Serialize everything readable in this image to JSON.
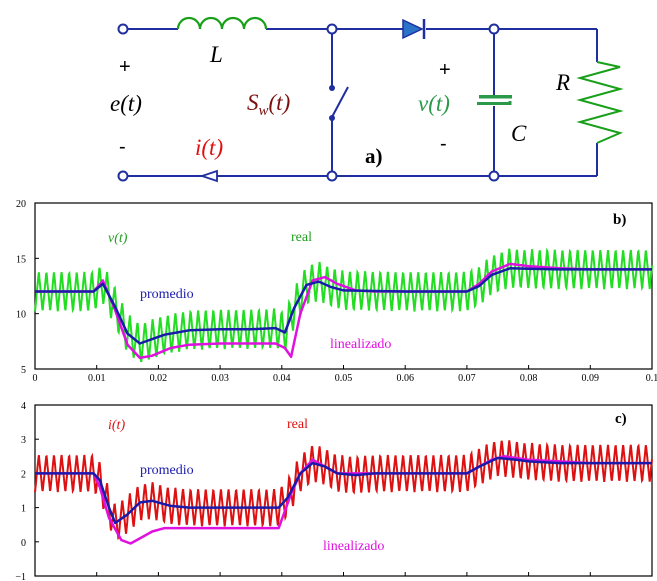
{
  "circuit": {
    "plus_left": "+",
    "minus_left": "-",
    "e_label": "e(t)",
    "L_label": "L",
    "switch_label": "S",
    "switch_sub": "w",
    "switch_arg": "(t)",
    "i_label": "i(t)",
    "panel_a": "a)",
    "plus_right": "+",
    "minus_right": "-",
    "v_label": "v(t)",
    "C_label": "C",
    "R_label": "R"
  },
  "colors": {
    "circuit_wire": "#1f2f9f",
    "inductor": "#18a018",
    "switch_label": "#7b1010",
    "current_label": "#e01010",
    "voltage_label": "#2a9a4a",
    "capacitor": "#2a9a4a",
    "resistor": "#18a018",
    "real_v": "#22dd22",
    "real_i": "#dd1111",
    "promedio": "#1a1aaa",
    "linealizado": "#e010e0"
  },
  "chart_data": [
    {
      "type": "line",
      "panel": "b)",
      "var_label": "v(t)",
      "xlim": [
        0,
        0.1
      ],
      "ylim": [
        5,
        20
      ],
      "xticks": [
        "0",
        "0.01",
        "0.02",
        "0.03",
        "0.04",
        "0.05",
        "0.06",
        "0.07",
        "0.08",
        "0.09",
        "0.1"
      ],
      "yticks": [
        "5",
        "10",
        "15",
        "20"
      ],
      "ripple": 3.6,
      "annotations": {
        "real": "real",
        "promedio": "promedio",
        "linealizado": "linealizado"
      },
      "series": [
        {
          "name": "promedio",
          "x": [
            0,
            0.0095,
            0.011,
            0.013,
            0.015,
            0.017,
            0.019,
            0.021,
            0.023,
            0.025,
            0.03,
            0.035,
            0.039,
            0.0405,
            0.042,
            0.044,
            0.046,
            0.048,
            0.05,
            0.055,
            0.06,
            0.065,
            0.07,
            0.072,
            0.074,
            0.077,
            0.08,
            0.085,
            0.09,
            0.095,
            0.1
          ],
          "y": [
            12,
            12,
            12.7,
            10.6,
            8.2,
            7.3,
            7.7,
            8.1,
            8.3,
            8.5,
            8.6,
            8.6,
            8.7,
            8.3,
            10.5,
            12.6,
            12.9,
            12.4,
            12.1,
            12.05,
            12,
            12,
            12,
            12.5,
            13.5,
            14.1,
            14.05,
            14,
            14,
            14,
            14
          ]
        },
        {
          "name": "linealizado",
          "x": [
            0,
            0.0095,
            0.011,
            0.013,
            0.015,
            0.017,
            0.019,
            0.022,
            0.025,
            0.03,
            0.035,
            0.039,
            0.0405,
            0.0415,
            0.043,
            0.045,
            0.047,
            0.049,
            0.052,
            0.055,
            0.06,
            0.065,
            0.07,
            0.072,
            0.074,
            0.077,
            0.08,
            0.085,
            0.09,
            0.1
          ],
          "y": [
            12,
            12,
            13,
            10.3,
            7.2,
            6,
            6.2,
            6.9,
            7.2,
            7.3,
            7.3,
            7.3,
            6.9,
            6.1,
            10,
            13,
            13.3,
            12.7,
            12.1,
            12,
            12,
            12,
            12,
            12.7,
            13.8,
            14.5,
            14.3,
            14.1,
            14,
            14
          ]
        }
      ]
    },
    {
      "type": "line",
      "panel": "c)",
      "var_label": "i(t)",
      "xlim": [
        0,
        0.1
      ],
      "ylim": [
        -1,
        4
      ],
      "xticks": [
        "0",
        "0.01",
        "0.02",
        "0.03",
        "0.04",
        "0.05",
        "0.06",
        "0.07",
        "0.08",
        "0.09",
        "0.1"
      ],
      "yticks": [
        "-1",
        "0",
        "1",
        "2",
        "3",
        "4"
      ],
      "ripple": 1.1,
      "annotations": {
        "real": "real",
        "promedio": "promedio",
        "linealizado": "linealizado"
      },
      "series": [
        {
          "name": "promedio",
          "x": [
            0,
            0.0095,
            0.0105,
            0.012,
            0.013,
            0.015,
            0.017,
            0.019,
            0.022,
            0.025,
            0.03,
            0.035,
            0.0395,
            0.041,
            0.043,
            0.045,
            0.047,
            0.049,
            0.052,
            0.055,
            0.06,
            0.065,
            0.07,
            0.072,
            0.075,
            0.078,
            0.08,
            0.085,
            0.09,
            0.1
          ],
          "y": [
            2,
            2,
            1.8,
            1,
            0.55,
            0.8,
            1.15,
            1.2,
            1.05,
            1,
            1,
            1,
            1,
            1.3,
            2,
            2.3,
            2.2,
            2,
            1.95,
            2,
            2,
            2,
            2,
            2.2,
            2.45,
            2.4,
            2.35,
            2.3,
            2.3,
            2.3
          ]
        },
        {
          "name": "linealizado",
          "x": [
            0,
            0.0095,
            0.0105,
            0.012,
            0.014,
            0.0155,
            0.017,
            0.019,
            0.021,
            0.025,
            0.03,
            0.035,
            0.0395,
            0.0415,
            0.043,
            0.045,
            0.047,
            0.049,
            0.052,
            0.055,
            0.06,
            0.065,
            0.07,
            0.072,
            0.074,
            0.076,
            0.078,
            0.08,
            0.085,
            0.09,
            0.1
          ],
          "y": [
            2,
            2,
            1.6,
            0.7,
            0.05,
            -0.05,
            0.1,
            0.3,
            0.4,
            0.4,
            0.4,
            0.4,
            0.4,
            1.4,
            2,
            2.4,
            2.2,
            2,
            2,
            2,
            2,
            2,
            2,
            2.2,
            2.4,
            2.5,
            2.45,
            2.4,
            2.35,
            2.3,
            2.3
          ]
        }
      ]
    }
  ]
}
